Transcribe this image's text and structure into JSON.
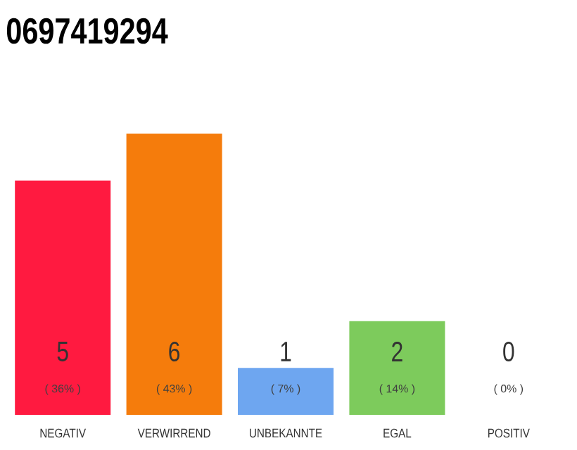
{
  "chart_data": {
    "type": "bar",
    "title": "0697419294",
    "categories": [
      "NEGATIV",
      "VERWIRREND",
      "UNBEKANNTE",
      "EGAL",
      "POSITIV"
    ],
    "values": [
      5,
      6,
      1,
      2,
      0
    ],
    "colors": [
      "#ff1a40",
      "#f57c0c",
      "#6ea6f0",
      "#7dcb5c",
      "#9e9e9e"
    ],
    "data_labels": true,
    "annotations": [
      "( 36% )",
      "( 43% )",
      "( 7% )",
      "( 14% )",
      "( 0% )"
    ]
  }
}
